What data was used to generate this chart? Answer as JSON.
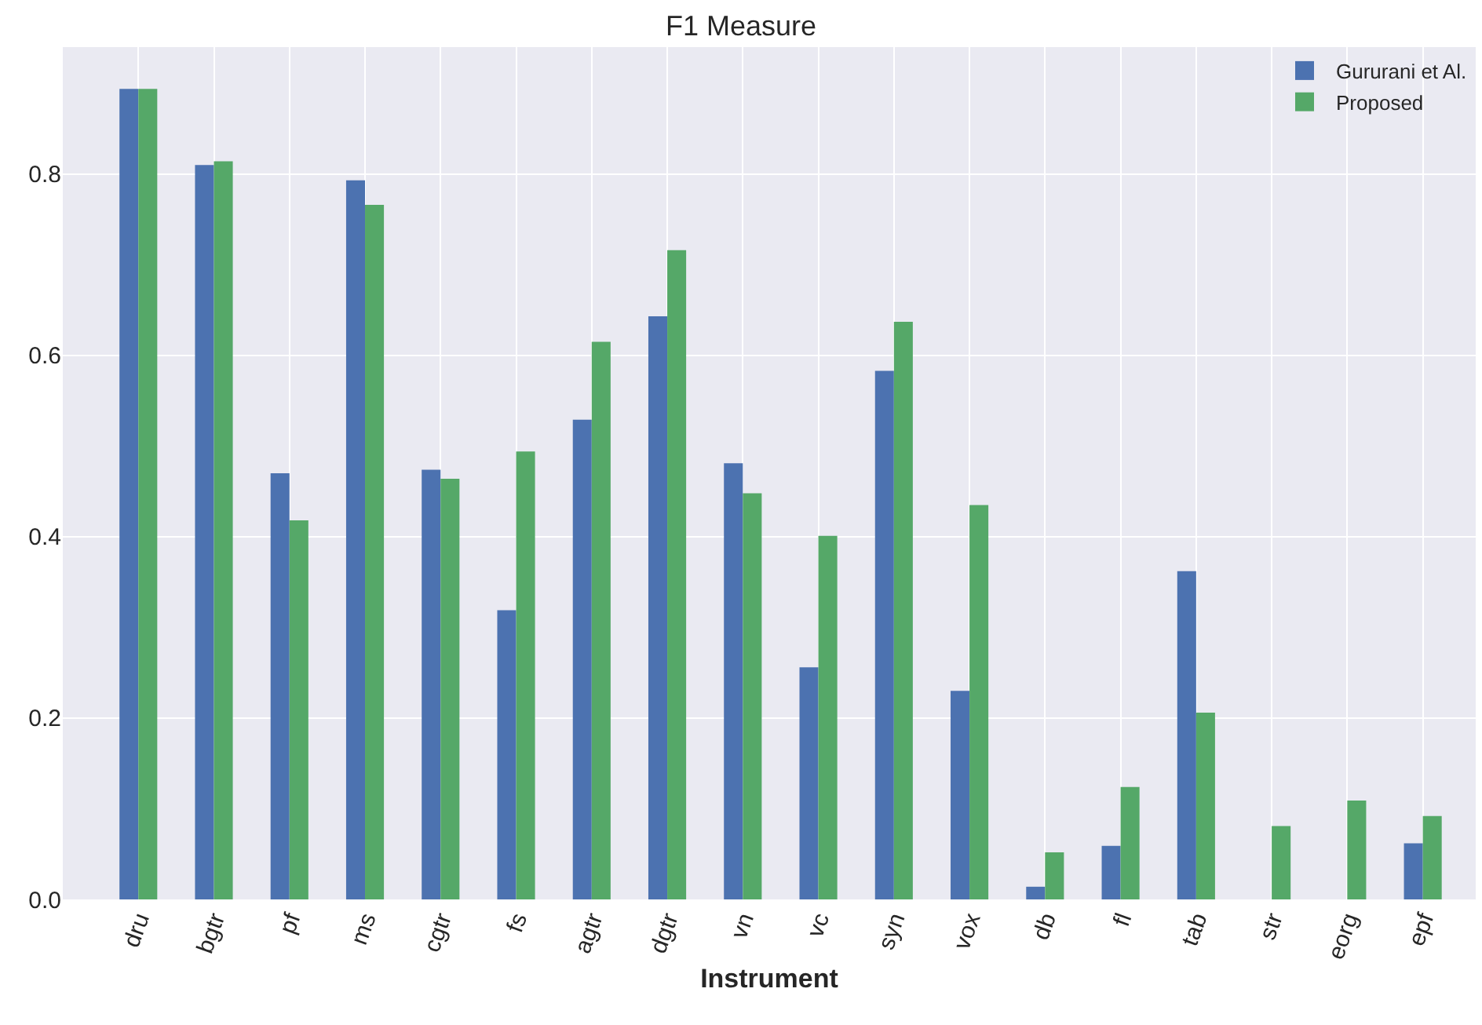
{
  "chart_data": {
    "type": "bar",
    "title": "F1 Measure",
    "xlabel": "Instrument",
    "categories": [
      "dru",
      "bgtr",
      "pf",
      "ms",
      "cgtr",
      "fs",
      "agtr",
      "dgtr",
      "vn",
      "vc",
      "syn",
      "vox",
      "db",
      "fl",
      "tab",
      "str",
      "eorg",
      "epf"
    ],
    "series": [
      {
        "name": "Gururani et Al.",
        "color": "#4c72b0",
        "values": [
          0.894,
          0.81,
          0.47,
          0.793,
          0.474,
          0.319,
          0.529,
          0.643,
          0.481,
          0.256,
          0.583,
          0.23,
          0.014,
          0.059,
          0.362,
          0,
          0,
          0.062
        ]
      },
      {
        "name": "Proposed",
        "color": "#55a868",
        "values": [
          0.894,
          0.814,
          0.418,
          0.766,
          0.464,
          0.494,
          0.615,
          0.716,
          0.448,
          0.401,
          0.637,
          0.435,
          0.052,
          0.124,
          0.206,
          0.081,
          0.109,
          0.092
        ]
      }
    ],
    "ylim": [
      0,
      0.94
    ],
    "yticks": [
      {
        "value": 0,
        "label": "0.0"
      },
      0.2,
      0.4,
      0.6,
      0.8
    ],
    "grid": true,
    "legend": "top right"
  }
}
